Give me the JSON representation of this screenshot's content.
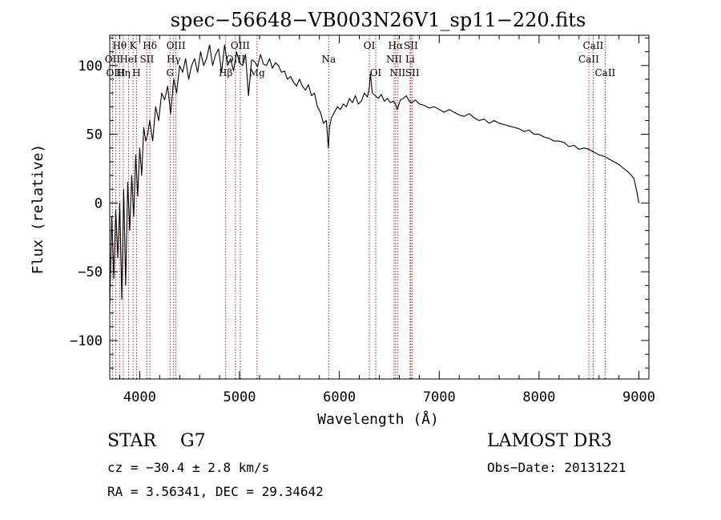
{
  "colors": {
    "line_marker": "#b22222",
    "spectrum": "#000000",
    "axis": "#000000"
  },
  "chart_data": {
    "type": "line",
    "title": "spec−56648−VB003N26V1_sp11−220.fits",
    "xlabel": "Wavelength (Å)",
    "ylabel": "Flux (relative)",
    "xlim": [
      3700,
      9100
    ],
    "ylim": [
      -128,
      122
    ],
    "x_ticks": [
      4000,
      5000,
      6000,
      7000,
      8000,
      9000
    ],
    "x_tick_labels": [
      "4000",
      "5000",
      "6000",
      "7000",
      "8000",
      "9000"
    ],
    "y_ticks": [
      -100,
      -50,
      0,
      50,
      100
    ],
    "y_tick_labels": [
      "−100",
      "−50",
      "0",
      "50",
      "100"
    ],
    "x_minor_step": 200,
    "y_minor_step": 10,
    "series": [
      {
        "name": "spectrum",
        "x": [
          3700,
          3720,
          3740,
          3760,
          3780,
          3800,
          3820,
          3840,
          3860,
          3880,
          3900,
          3920,
          3940,
          3960,
          3980,
          4000,
          4020,
          4040,
          4060,
          4080,
          4100,
          4130,
          4160,
          4190,
          4220,
          4250,
          4280,
          4310,
          4340,
          4370,
          4400,
          4430,
          4460,
          4490,
          4520,
          4550,
          4580,
          4610,
          4640,
          4670,
          4700,
          4730,
          4760,
          4790,
          4820,
          4850,
          4880,
          4910,
          4940,
          4970,
          5000,
          5030,
          5060,
          5090,
          5120,
          5150,
          5180,
          5210,
          5240,
          5270,
          5300,
          5330,
          5360,
          5390,
          5420,
          5450,
          5480,
          5510,
          5540,
          5570,
          5600,
          5630,
          5660,
          5690,
          5720,
          5750,
          5780,
          5810,
          5840,
          5870,
          5890,
          5900,
          5920,
          5950,
          5980,
          6010,
          6040,
          6070,
          6100,
          6130,
          6160,
          6190,
          6220,
          6250,
          6280,
          6300,
          6310,
          6330,
          6360,
          6390,
          6420,
          6450,
          6480,
          6510,
          6540,
          6563,
          6580,
          6610,
          6640,
          6670,
          6700,
          6730,
          6760,
          6800,
          6850,
          6900,
          6950,
          7000,
          7050,
          7100,
          7150,
          7200,
          7250,
          7300,
          7350,
          7400,
          7450,
          7500,
          7550,
          7600,
          7650,
          7700,
          7750,
          7800,
          7850,
          7900,
          7950,
          8000,
          8050,
          8100,
          8150,
          8200,
          8250,
          8300,
          8350,
          8400,
          8450,
          8500,
          8550,
          8600,
          8650,
          8700,
          8750,
          8800,
          8850,
          8900,
          8950,
          8980,
          9000
        ],
        "values": [
          -75,
          -10,
          -55,
          -5,
          -40,
          0,
          -70,
          10,
          -60,
          15,
          -20,
          20,
          -10,
          35,
          5,
          40,
          20,
          55,
          45,
          50,
          60,
          45,
          70,
          60,
          80,
          75,
          85,
          65,
          90,
          80,
          100,
          95,
          105,
          90,
          100,
          105,
          95,
          110,
          100,
          105,
          115,
          100,
          108,
          112,
          95,
          115,
          100,
          105,
          96,
          110,
          102,
          100,
          108,
          78,
          104,
          103,
          99,
          108,
          101,
          100,
          105,
          98,
          102,
          100,
          95,
          96,
          90,
          92,
          88,
          85,
          90,
          85,
          82,
          86,
          78,
          80,
          70,
          66,
          58,
          60,
          40,
          55,
          62,
          66,
          70,
          68,
          72,
          70,
          76,
          73,
          78,
          72,
          74,
          80,
          77,
          84,
          94,
          80,
          78,
          76,
          79,
          74,
          76,
          73,
          74,
          72,
          68,
          75,
          76,
          78,
          74,
          73,
          75,
          72,
          71,
          69,
          70,
          68,
          66,
          68,
          66,
          64,
          63,
          65,
          62,
          60,
          61,
          58,
          60,
          58,
          57,
          56,
          55,
          54,
          52,
          53,
          50,
          50,
          48,
          47,
          45,
          45,
          44,
          41,
          42,
          39,
          40,
          39,
          37,
          35,
          34,
          32,
          30,
          28,
          25,
          22,
          18,
          8,
          0
        ]
      }
    ],
    "lines": [
      {
        "name": "Hθ",
        "wave": 3798,
        "row": 1
      },
      {
        "name": "OII",
        "wave": 3727,
        "row": 2
      },
      {
        "name": "OIII",
        "wave": 3760,
        "row": 3
      },
      {
        "name": "Hη",
        "wave": 3835,
        "row": 3
      },
      {
        "name": "HeI",
        "wave": 3889,
        "row": 2
      },
      {
        "name": "K",
        "wave": 3934,
        "row": 1
      },
      {
        "name": "H",
        "wave": 3968,
        "row": 3
      },
      {
        "name": "SII",
        "wave": 4072,
        "row": 2
      },
      {
        "name": "Hδ",
        "wave": 4102,
        "row": 1
      },
      {
        "name": "G",
        "wave": 4304,
        "row": 3
      },
      {
        "name": "Hγ",
        "wave": 4340,
        "row": 2
      },
      {
        "name": "OIII",
        "wave": 4363,
        "row": 1
      },
      {
        "name": "Hβ",
        "wave": 4861,
        "row": 3
      },
      {
        "name": "OIII",
        "wave": 4959,
        "row": 2
      },
      {
        "name": "OIII",
        "wave": 5007,
        "row": 1
      },
      {
        "name": "Mg",
        "wave": 5175,
        "row": 3
      },
      {
        "name": "Na",
        "wave": 5893,
        "row": 2
      },
      {
        "name": "OI",
        "wave": 6300,
        "row": 1
      },
      {
        "name": "OI",
        "wave": 6364,
        "row": 3
      },
      {
        "name": "NII",
        "wave": 6548,
        "row": 2
      },
      {
        "name": "Hα",
        "wave": 6563,
        "row": 1
      },
      {
        "name": "NII",
        "wave": 6583,
        "row": 3
      },
      {
        "name": "Li",
        "wave": 6708,
        "row": 2
      },
      {
        "name": "SII",
        "wave": 6716,
        "row": 1
      },
      {
        "name": "SII",
        "wave": 6731,
        "row": 3
      },
      {
        "name": "CaII",
        "wave": 8498,
        "row": 2
      },
      {
        "name": "CaII",
        "wave": 8542,
        "row": 1
      },
      {
        "name": "CaII",
        "wave": 8662,
        "row": 3
      }
    ]
  },
  "info": {
    "class": "STAR",
    "subclass": "G7",
    "survey": "LAMOST DR3",
    "cz": "cz = −30.4 ± 2.8 km/s",
    "obs_date": "Obs−Date: 20131221",
    "radec": "RA =   3.56341, DEC =  29.34642"
  }
}
